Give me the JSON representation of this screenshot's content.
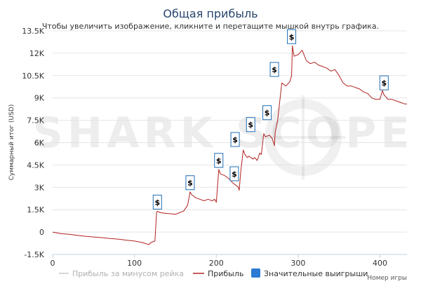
{
  "chart_data": {
    "type": "line",
    "title": "Общая прибыль",
    "subtitle": "Чтобы увеличить изображение, кликните и перетащите мышкой внутрь графика.",
    "xlabel": "Номер игры",
    "ylabel": "Суммарный итог (USD)",
    "xlim": [
      0,
      433
    ],
    "ylim": [
      -1500,
      13500
    ],
    "x_ticks": [
      0,
      100,
      200,
      300,
      400
    ],
    "y_ticks": [
      -1500,
      0,
      1500,
      3000,
      4500,
      6000,
      7500,
      9000,
      10500,
      12000,
      13500
    ],
    "y_tick_labels": [
      "-1.5K",
      "0",
      "1.5K",
      "3K",
      "4.5K",
      "6K",
      "7.5K",
      "9K",
      "10.5K",
      "12K",
      "13.5K"
    ],
    "grid": "horizontal",
    "legend_position": "bottom",
    "watermark": "SHARK SCOPE",
    "colors": {
      "profit": "#b22222",
      "ex_rake": "#c8c8c8",
      "big_wins": "#2b7bd4",
      "marker_border": "#1f6fb5",
      "grid": "#e4e4e4",
      "title": "#27466d"
    },
    "series": [
      {
        "name": "Прибыль",
        "x": [
          0,
          10,
          20,
          30,
          40,
          50,
          60,
          70,
          80,
          90,
          100,
          110,
          115,
          118,
          120,
          125,
          127,
          128,
          132,
          140,
          150,
          160,
          165,
          168,
          170,
          175,
          180,
          185,
          190,
          195,
          198,
          200,
          203,
          205,
          210,
          215,
          217,
          220,
          225,
          227,
          228,
          230,
          233,
          235,
          238,
          240,
          242,
          245,
          247,
          250,
          253,
          255,
          258,
          260,
          265,
          268,
          270,
          271,
          272,
          275,
          280,
          285,
          290,
          292,
          293,
          295,
          300,
          305,
          310,
          315,
          320,
          325,
          330,
          335,
          340,
          345,
          350,
          355,
          360,
          365,
          370,
          375,
          380,
          385,
          390,
          395,
          400,
          403,
          405,
          410,
          415,
          420,
          425,
          430,
          433
        ],
        "y": [
          0,
          -100,
          -150,
          -220,
          -280,
          -330,
          -370,
          -430,
          -470,
          -540,
          -600,
          -700,
          -800,
          -830,
          -700,
          -600,
          1300,
          1400,
          1300,
          1250,
          1200,
          1400,
          1800,
          2700,
          2500,
          2300,
          2200,
          2100,
          2200,
          2100,
          2200,
          2000,
          4200,
          3900,
          3800,
          3600,
          3500,
          3300,
          3100,
          3000,
          2800,
          4100,
          5500,
          5200,
          5000,
          5100,
          5000,
          4900,
          5000,
          4800,
          5300,
          5200,
          6600,
          6400,
          6500,
          6300,
          6000,
          5800,
          6700,
          7500,
          10000,
          9800,
          10100,
          10500,
          12500,
          11800,
          11900,
          12200,
          11500,
          11300,
          11400,
          11200,
          11100,
          11000,
          10800,
          10900,
          10500,
          10000,
          9800,
          9800,
          9700,
          9600,
          9400,
          9300,
          9000,
          8900,
          8900,
          9500,
          9200,
          8900,
          8900,
          8800,
          8700,
          8600,
          8600
        ]
      },
      {
        "name": "Прибыль за минусом рейка",
        "x": [],
        "y": []
      },
      {
        "name": "Значительные выигрыши",
        "x": [],
        "y": []
      }
    ],
    "big_win_markers": [
      {
        "x": 128,
        "y": 1400,
        "label": "$"
      },
      {
        "x": 168,
        "y": 2700,
        "label": "$"
      },
      {
        "x": 203,
        "y": 4200,
        "label": "$"
      },
      {
        "x": 222,
        "y": 3300,
        "label": "$"
      },
      {
        "x": 223,
        "y": 5600,
        "label": "$"
      },
      {
        "x": 242,
        "y": 6600,
        "label": "$"
      },
      {
        "x": 262,
        "y": 7400,
        "label": "$"
      },
      {
        "x": 271,
        "y": 10300,
        "label": "$"
      },
      {
        "x": 292,
        "y": 12500,
        "label": "$"
      },
      {
        "x": 405,
        "y": 9400,
        "label": "$"
      }
    ]
  }
}
